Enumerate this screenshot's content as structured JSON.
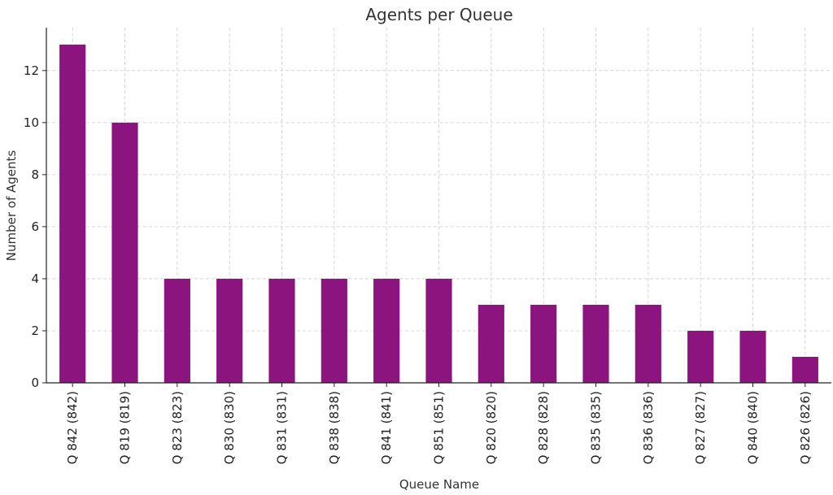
{
  "chart_data": {
    "type": "bar",
    "title": "Agents per Queue",
    "xlabel": "Queue Name",
    "ylabel": "Number of Agents",
    "categories": [
      "Q 842 (842)",
      "Q 819 (819)",
      "Q 823 (823)",
      "Q 830 (830)",
      "Q 831 (831)",
      "Q 838 (838)",
      "Q 841 (841)",
      "Q 851 (851)",
      "Q 820 (820)",
      "Q 828 (828)",
      "Q 835 (835)",
      "Q 836 (836)",
      "Q 827 (827)",
      "Q 840 (840)",
      "Q 826 (826)"
    ],
    "values": [
      13,
      10,
      4,
      4,
      4,
      4,
      4,
      4,
      3,
      3,
      3,
      3,
      2,
      2,
      1
    ],
    "ylim": [
      0,
      13.65
    ],
    "yticks": [
      0,
      2,
      4,
      6,
      8,
      10,
      12
    ],
    "grid": true,
    "bar_color": "#8b147f"
  }
}
